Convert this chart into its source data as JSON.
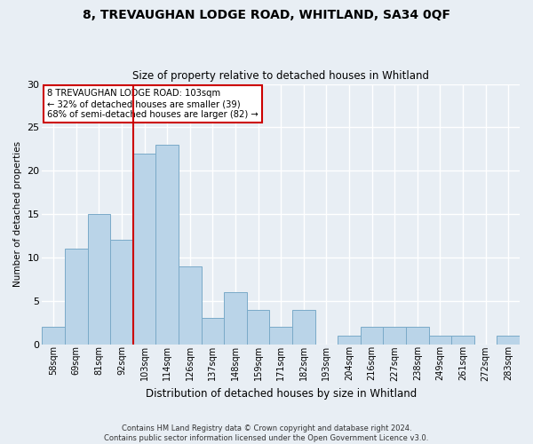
{
  "title1": "8, TREVAUGHAN LODGE ROAD, WHITLAND, SA34 0QF",
  "title2": "Size of property relative to detached houses in Whitland",
  "xlabel": "Distribution of detached houses by size in Whitland",
  "ylabel": "Number of detached properties",
  "categories": [
    "58sqm",
    "69sqm",
    "81sqm",
    "92sqm",
    "103sqm",
    "114sqm",
    "126sqm",
    "137sqm",
    "148sqm",
    "159sqm",
    "171sqm",
    "182sqm",
    "193sqm",
    "204sqm",
    "216sqm",
    "227sqm",
    "238sqm",
    "249sqm",
    "261sqm",
    "272sqm",
    "283sqm"
  ],
  "values": [
    2,
    11,
    15,
    12,
    22,
    23,
    9,
    3,
    6,
    4,
    2,
    4,
    0,
    1,
    2,
    2,
    2,
    1,
    1,
    0,
    1
  ],
  "bar_color": "#bad4e8",
  "bar_edge_color": "#7aaac8",
  "vline_index": 4,
  "vline_color": "#cc0000",
  "annotation_title": "8 TREVAUGHAN LODGE ROAD: 103sqm",
  "annotation_line1": "← 32% of detached houses are smaller (39)",
  "annotation_line2": "68% of semi-detached houses are larger (82) →",
  "annotation_box_color": "#ffffff",
  "annotation_box_edge": "#cc0000",
  "ylim": [
    0,
    30
  ],
  "yticks": [
    0,
    5,
    10,
    15,
    20,
    25,
    30
  ],
  "footer1": "Contains HM Land Registry data © Crown copyright and database right 2024.",
  "footer2": "Contains public sector information licensed under the Open Government Licence v3.0.",
  "bg_color": "#e8eef4",
  "grid_color": "#ffffff"
}
